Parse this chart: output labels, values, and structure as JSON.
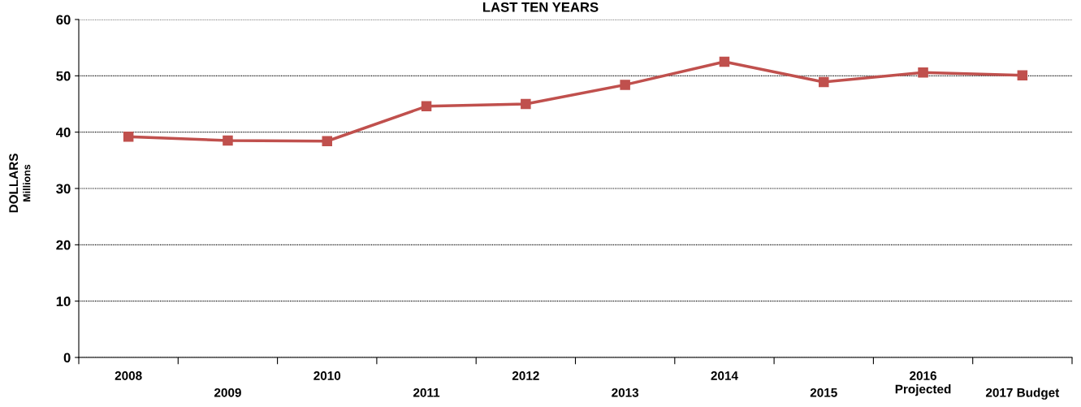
{
  "chart_data": {
    "type": "line",
    "title": "LAST TEN YEARS",
    "ylabel": "DOLLARS\nMillions",
    "categories": [
      "2008",
      "2009",
      "2010",
      "2011",
      "2012",
      "2013",
      "2014",
      "2015",
      "2016\nProjected",
      "2017 Budget"
    ],
    "series": [
      {
        "color": "#c0504d",
        "values": [
          39.2,
          38.5,
          38.4,
          44.6,
          45.0,
          48.4,
          52.5,
          48.9,
          50.6,
          50.1
        ]
      }
    ],
    "ylim": [
      0,
      60
    ],
    "yticks": [
      0,
      10,
      20,
      30,
      40,
      50,
      60
    ],
    "grid": "y",
    "marker": "square",
    "line_style": "solid"
  }
}
